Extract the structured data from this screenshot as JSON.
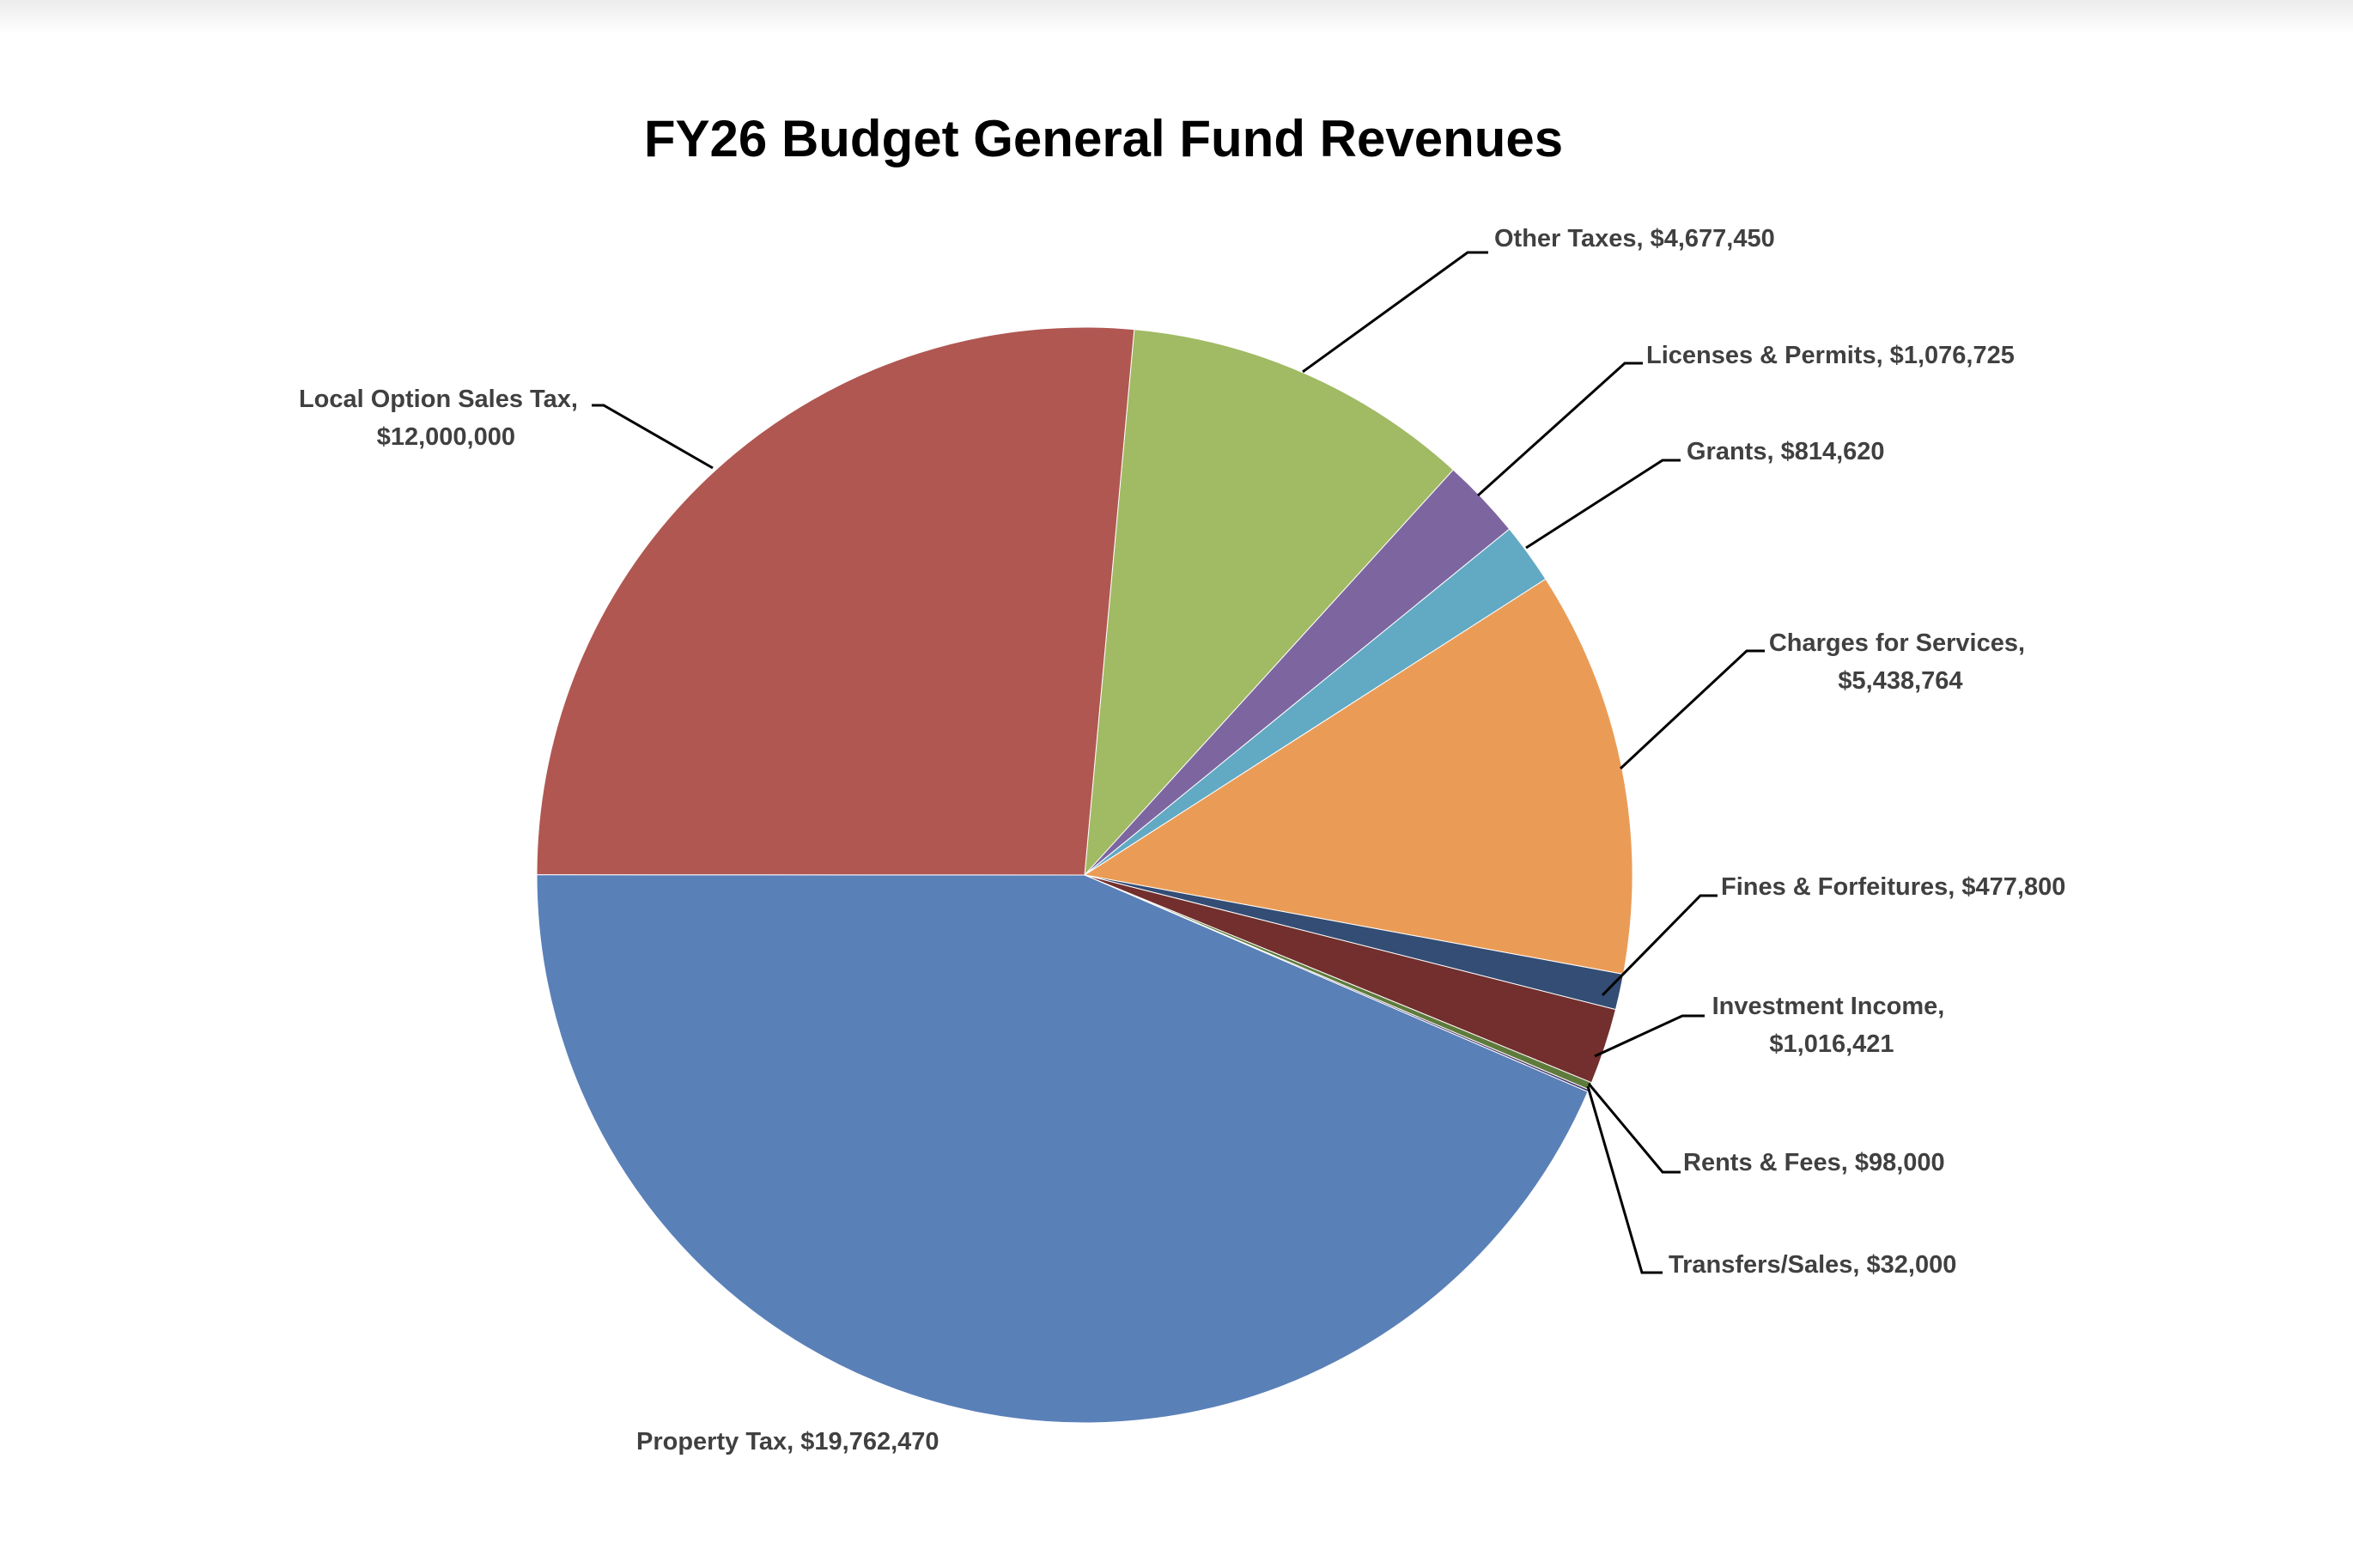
{
  "chart_data": {
    "type": "pie",
    "title": "FY26 Budget General Fund Revenues",
    "slices": [
      {
        "name": "Other Taxes",
        "value": 4677450,
        "label": "Other Taxes, $4,677,450",
        "color": "#A1BA64"
      },
      {
        "name": "Licenses & Permits",
        "value": 1076725,
        "label": "Licenses & Permits, $1,076,725",
        "color": "#7D66A0"
      },
      {
        "name": "Grants",
        "value": 814620,
        "label": "Grants, $814,620",
        "color": "#62A9C3"
      },
      {
        "name": "Charges for Services",
        "value": 5438764,
        "label_lines": [
          "Charges for Services,",
          "$5,438,764"
        ],
        "color": "#EA9C57"
      },
      {
        "name": "Fines & Forfeitures",
        "value": 477800,
        "label": "Fines & Forfeitures, $477,800",
        "color": "#344D74"
      },
      {
        "name": "Investment Income",
        "value": 1016421,
        "label_lines": [
          "Investment Income,",
          "$1,016,421"
        ],
        "color": "#722F2E"
      },
      {
        "name": "Rents & Fees",
        "value": 98000,
        "label": "Rents & Fees, $98,000",
        "color": "#5E7B3C"
      },
      {
        "name": "Transfers/Sales",
        "value": 32000,
        "label": "Transfers/Sales, $32,000",
        "color": "#4F3F6F"
      },
      {
        "name": "Property Tax",
        "value": 19762470,
        "label": "Property Tax, $19,762,470",
        "color": "#5A80B8"
      },
      {
        "name": "Local Option Sales Tax",
        "value": 12000000,
        "label_lines": [
          "Local Option Sales Tax,",
          "$12,000,000"
        ],
        "color": "#B05752"
      }
    ],
    "legend": "none",
    "data_labels": "outside with leader lines"
  }
}
